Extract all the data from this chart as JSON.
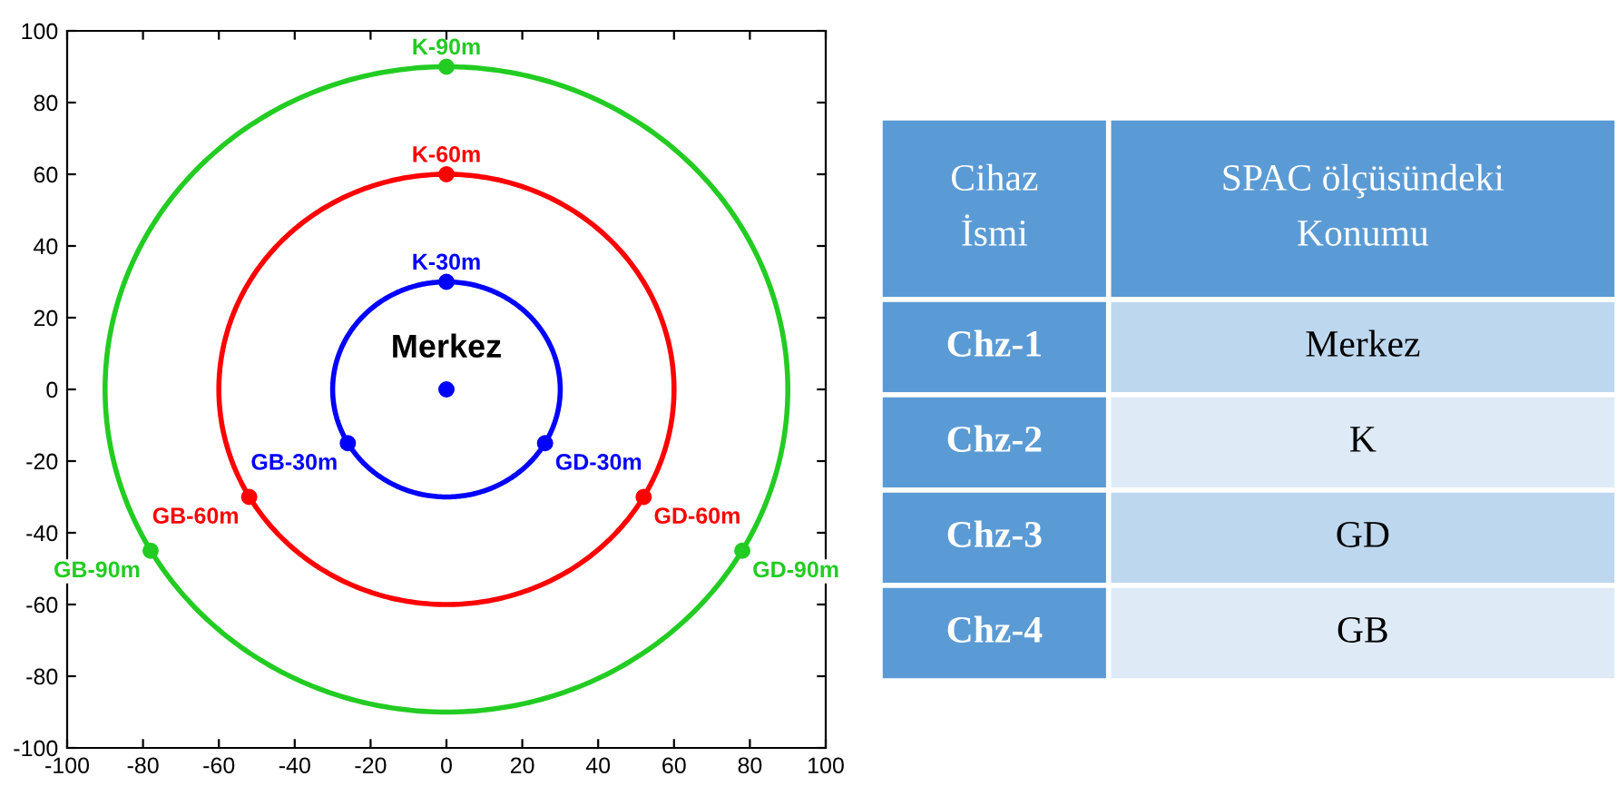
{
  "chart_data": [
    {
      "type": "scatter",
      "xlim": [
        -100,
        100
      ],
      "ylim": [
        -100,
        100
      ],
      "legend": false,
      "xticks": [
        -100,
        -80,
        -60,
        -40,
        -20,
        0,
        20,
        40,
        60,
        80,
        100
      ],
      "yticks": [
        -100,
        -80,
        -60,
        -40,
        -20,
        0,
        20,
        40,
        60,
        80,
        100
      ],
      "grid": false,
      "series": [
        {
          "type": "scatter",
          "marker": "circle",
          "x": [
            0,
            0,
            -26,
            26,
            0,
            -52,
            52,
            0,
            -78,
            78
          ],
          "values": [
            0,
            30,
            -15,
            -15,
            60,
            -30,
            -30,
            90,
            -45,
            -45
          ],
          "colors": [
            "#0000ff",
            "#0000ff",
            "#0000ff",
            "#0000ff",
            "#ff0000",
            "#ff0000",
            "#ff0000",
            "#22cc22",
            "#22cc22",
            "#22cc22"
          ]
        }
      ],
      "annotations": [
        {
          "text": "Merkez",
          "x": 0,
          "y": 0
        },
        {
          "text": "K-30m",
          "x": 0,
          "y": 30
        },
        {
          "text": "GB-30m",
          "x": -26,
          "y": -15
        },
        {
          "text": "GD-30m",
          "x": 26,
          "y": -15
        },
        {
          "text": "K-60m",
          "x": 0,
          "y": 60
        },
        {
          "text": "GB-60m",
          "x": -52,
          "y": -30
        },
        {
          "text": "GD-60m",
          "x": 52,
          "y": -30
        },
        {
          "text": "K-90m",
          "x": 0,
          "y": 90
        },
        {
          "text": "GB-90m",
          "x": -78,
          "y": -45
        },
        {
          "text": "GD-90m",
          "x": 78,
          "y": -45
        }
      ]
    },
    {
      "type": "other",
      "annotations": [
        "Cihaz\nİsmi",
        "SPAC ölçüsündeki\nKonumu",
        "Chz-1",
        "Merkez",
        "Chz-2",
        "K",
        "Chz-3",
        "GD",
        "Chz-4",
        "GB"
      ]
    }
  ]
}
